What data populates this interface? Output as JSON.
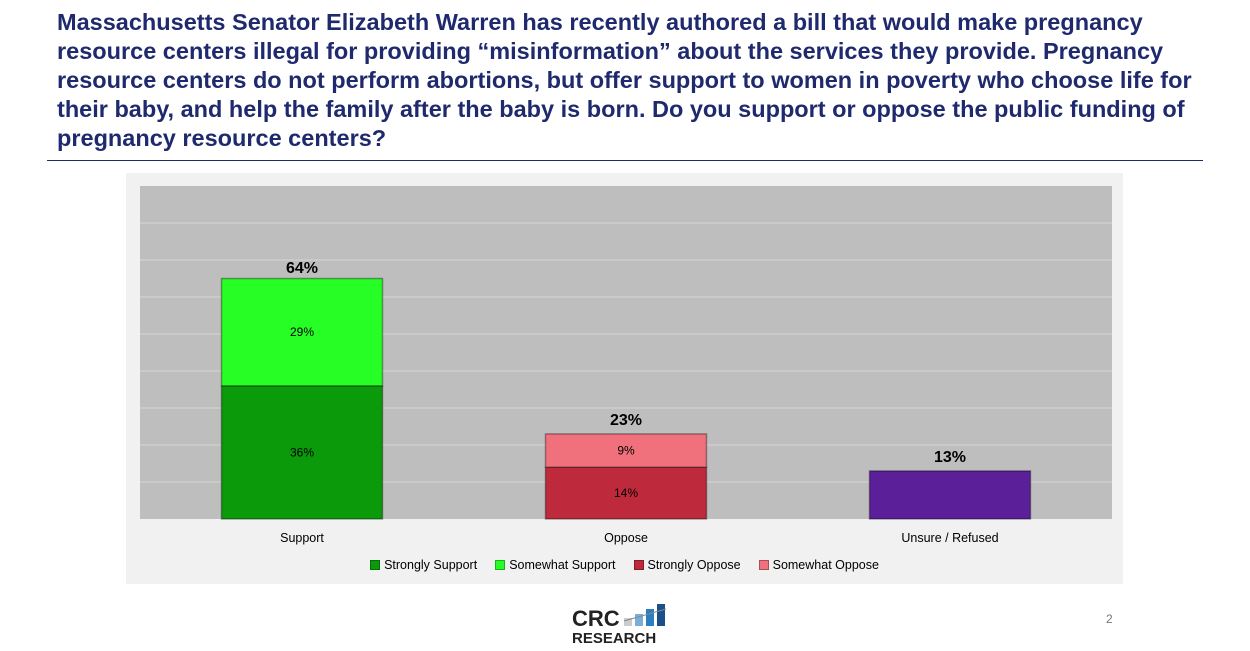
{
  "title": "Massachusetts Senator Elizabeth Warren has recently authored a bill that would make pregnancy resource centers illegal for providing “misinformation” about the services they provide. Pregnancy resource centers do not perform abortions, but offer support to women in poverty who choose life for their baby, and help the family after the baby is born. Do you support or oppose the public funding of pregnancy resource centers?",
  "chart_data": {
    "type": "bar",
    "stacked": true,
    "categories": [
      "Support",
      "Oppose",
      "Unsure / Refused"
    ],
    "totals": [
      64,
      23,
      13
    ],
    "total_labels": [
      "64%",
      "23%",
      "13%"
    ],
    "series": [
      {
        "name": "Strongly Support",
        "values": [
          36,
          0,
          0
        ],
        "color": "#0a9a0a"
      },
      {
        "name": "Somewhat Support",
        "values": [
          29,
          0,
          0
        ],
        "color": "#26fe26"
      },
      {
        "name": "Strongly Oppose",
        "values": [
          0,
          14,
          0
        ],
        "color": "#be2a3c"
      },
      {
        "name": "Somewhat Oppose",
        "values": [
          0,
          9,
          0
        ],
        "color": "#f0707c"
      },
      {
        "name": "Unsure / Refused",
        "values": [
          0,
          0,
          13
        ],
        "color": "#5b2099",
        "legend": false
      }
    ],
    "ylim": [
      0,
      90
    ],
    "grid": true,
    "legend_position": "bottom",
    "xlabel": "",
    "ylabel": ""
  },
  "logo_text": "CRC RESEARCH",
  "page_number": "2"
}
